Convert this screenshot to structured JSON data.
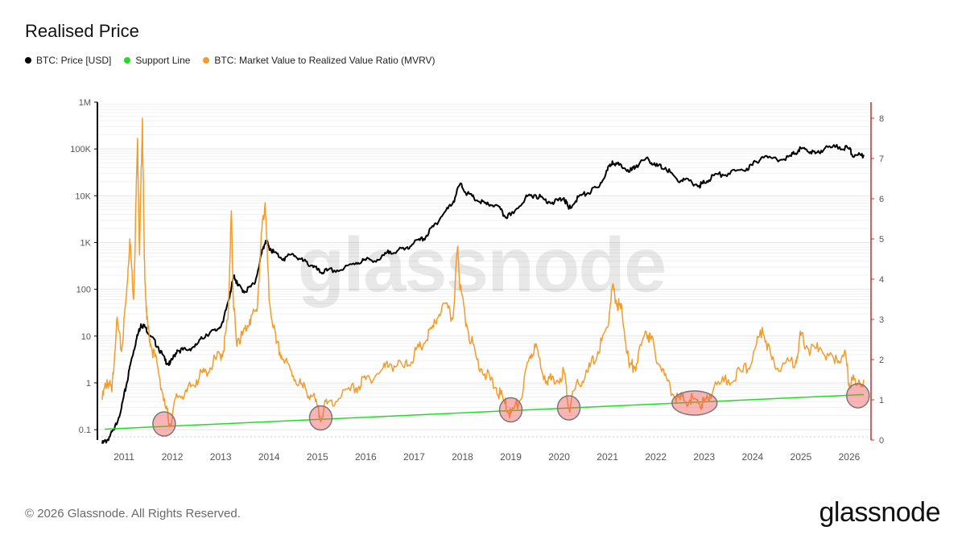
{
  "header": {
    "title": "Realised Price"
  },
  "legend": [
    {
      "label": "BTC: Price [USD]",
      "color": "#000000"
    },
    {
      "label": "Support Line",
      "color": "#22dd22"
    },
    {
      "label": "BTC: Market Value to Realized Value Ratio (MVRV)",
      "color": "#f39c2b"
    }
  ],
  "watermark": "glassnode",
  "footer": {
    "copyright": "© 2026 Glassnode. All Rights Reserved.",
    "brand": "glassnode"
  },
  "chart_data": {
    "type": "line",
    "title": "Realised Price",
    "x_ticks": [
      "2011",
      "2012",
      "2013",
      "2014",
      "2015",
      "2016",
      "2017",
      "2018",
      "2019",
      "2020",
      "2021",
      "2022",
      "2023",
      "2024",
      "2025",
      "2026"
    ],
    "xlim": [
      2010.45,
      2026.45
    ],
    "y_left": {
      "scale": "log",
      "ticks": [
        "0.1",
        "1",
        "10",
        "100",
        "1K",
        "10K",
        "100K",
        "1M"
      ],
      "tick_values": [
        0.1,
        1,
        10,
        100,
        1000,
        10000,
        100000,
        1000000
      ],
      "lim": [
        0.06,
        1000000
      ]
    },
    "y_right": {
      "scale": "linear",
      "ticks": [
        "0",
        "1",
        "2",
        "3",
        "4",
        "5",
        "6",
        "7",
        "8"
      ],
      "lim": [
        0,
        8.4
      ],
      "axis_color": "#cc2b2b"
    },
    "grid": true,
    "legend_position": "top-left",
    "series": [
      {
        "name": "BTC: Price [USD]",
        "axis": "left",
        "color": "#000000",
        "x": [
          2010.55,
          2010.65,
          2010.8,
          2010.95,
          2011.05,
          2011.15,
          2011.25,
          2011.35,
          2011.45,
          2011.55,
          2011.7,
          2011.85,
          2011.95,
          2012.1,
          2012.3,
          2012.5,
          2012.7,
          2012.9,
          2013.05,
          2013.2,
          2013.28,
          2013.35,
          2013.5,
          2013.7,
          2013.85,
          2013.93,
          2014.0,
          2014.1,
          2014.3,
          2014.5,
          2014.7,
          2014.9,
          2015.05,
          2015.2,
          2015.5,
          2015.8,
          2016.0,
          2016.3,
          2016.5,
          2016.8,
          2017.0,
          2017.2,
          2017.4,
          2017.6,
          2017.8,
          2017.95,
          2018.1,
          2018.3,
          2018.5,
          2018.7,
          2018.88,
          2019.0,
          2019.3,
          2019.5,
          2019.7,
          2019.9,
          2020.1,
          2020.2,
          2020.4,
          2020.6,
          2020.8,
          2021.0,
          2021.1,
          2021.3,
          2021.5,
          2021.6,
          2021.85,
          2022.0,
          2022.2,
          2022.45,
          2022.6,
          2022.9,
          2023.0,
          2023.2,
          2023.5,
          2023.8,
          2024.0,
          2024.2,
          2024.5,
          2024.8,
          2024.95,
          2025.1,
          2025.3,
          2025.5,
          2025.8,
          2026.0,
          2026.1,
          2026.3
        ],
        "y": [
          0.05,
          0.06,
          0.1,
          0.3,
          0.9,
          3,
          8,
          18,
          15,
          10,
          6,
          3,
          2.5,
          5,
          5,
          6.5,
          11,
          13,
          20,
          90,
          200,
          120,
          90,
          130,
          600,
          1100,
          800,
          620,
          450,
          560,
          400,
          320,
          230,
          250,
          260,
          370,
          420,
          440,
          650,
          700,
          1000,
          1200,
          2200,
          4000,
          7000,
          18000,
          11000,
          8000,
          6500,
          6400,
          3600,
          3800,
          9000,
          10500,
          8200,
          7200,
          9000,
          5200,
          9500,
          11500,
          15000,
          35000,
          55000,
          40000,
          35000,
          45000,
          60000,
          43000,
          40000,
          21000,
          22000,
          16500,
          19000,
          27000,
          30000,
          35000,
          45000,
          68000,
          60000,
          70000,
          95000,
          100000,
          80000,
          105000,
          110000,
          100000,
          68000,
          75000
        ]
      },
      {
        "name": "Support Line",
        "axis": "right",
        "color": "#22dd22",
        "x": [
          2010.6,
          2026.3
        ],
        "y": [
          0.27,
          1.13
        ]
      },
      {
        "name": "BTC: Market Value to Realized Value Ratio (MVRV)",
        "axis": "right",
        "color": "#f39c2b",
        "x": [
          2010.55,
          2010.65,
          2010.75,
          2010.85,
          2010.95,
          2011.05,
          2011.12,
          2011.2,
          2011.28,
          2011.32,
          2011.38,
          2011.42,
          2011.47,
          2011.55,
          2011.7,
          2011.85,
          2011.95,
          2012.1,
          2012.3,
          2012.5,
          2012.7,
          2012.9,
          2013.05,
          2013.15,
          2013.22,
          2013.26,
          2013.32,
          2013.45,
          2013.6,
          2013.75,
          2013.85,
          2013.92,
          2014.0,
          2014.15,
          2014.3,
          2014.5,
          2014.7,
          2014.9,
          2015.05,
          2015.2,
          2015.5,
          2015.8,
          2016.0,
          2016.3,
          2016.5,
          2016.8,
          2017.0,
          2017.2,
          2017.4,
          2017.6,
          2017.8,
          2017.9,
          2017.95,
          2018.1,
          2018.3,
          2018.5,
          2018.7,
          2018.88,
          2019.0,
          2019.2,
          2019.4,
          2019.5,
          2019.7,
          2019.9,
          2020.1,
          2020.2,
          2020.4,
          2020.6,
          2020.8,
          2021.0,
          2021.1,
          2021.2,
          2021.3,
          2021.45,
          2021.6,
          2021.8,
          2021.9,
          2022.1,
          2022.3,
          2022.5,
          2022.7,
          2022.9,
          2023.0,
          2023.2,
          2023.5,
          2023.8,
          2024.0,
          2024.2,
          2024.4,
          2024.6,
          2024.9,
          2025.0,
          2025.2,
          2025.4,
          2025.7,
          2025.9,
          2026.0,
          2026.1,
          2026.3
        ],
        "y": [
          1.0,
          1.5,
          1.2,
          3.0,
          2.2,
          3.6,
          5.0,
          3.5,
          7.5,
          4.6,
          8.0,
          4.5,
          3.0,
          2.4,
          1.8,
          0.85,
          0.4,
          1.1,
          1.2,
          1.5,
          1.7,
          2.0,
          2.2,
          3.0,
          5.7,
          3.5,
          2.5,
          2.6,
          3.0,
          3.2,
          5.2,
          5.9,
          3.5,
          2.4,
          2.0,
          1.6,
          1.3,
          1.1,
          0.6,
          0.9,
          1.1,
          1.3,
          1.5,
          1.7,
          1.9,
          1.8,
          2.1,
          2.4,
          2.8,
          3.4,
          3.0,
          4.8,
          3.8,
          2.8,
          2.0,
          1.6,
          1.3,
          0.9,
          0.65,
          1.0,
          2.1,
          2.3,
          1.6,
          1.4,
          1.7,
          0.8,
          1.4,
          1.7,
          2.2,
          2.8,
          3.8,
          3.4,
          3.2,
          1.8,
          1.9,
          2.7,
          2.5,
          1.8,
          1.3,
          1.0,
          1.0,
          0.9,
          0.95,
          1.3,
          1.5,
          1.7,
          2.0,
          2.8,
          2.0,
          1.8,
          2.0,
          2.6,
          2.2,
          2.3,
          1.9,
          2.2,
          1.4,
          1.5,
          1.5
        ]
      }
    ],
    "highlights": [
      {
        "x": 2011.83,
        "y_right": 0.4
      },
      {
        "x": 2015.07,
        "y_right": 0.55
      },
      {
        "x": 2019.0,
        "y_right": 0.75
      },
      {
        "x": 2020.2,
        "y_right": 0.8
      },
      {
        "x": 2022.8,
        "y_right": 0.92
      },
      {
        "x": 2026.18,
        "y_right": 1.1
      }
    ]
  }
}
